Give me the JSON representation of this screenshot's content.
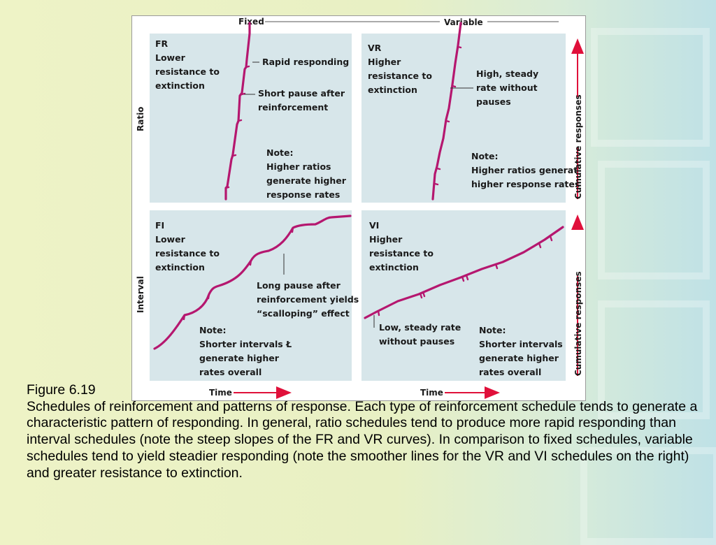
{
  "figure": {
    "headers": {
      "fixed": "Fixed",
      "variable": "Variable"
    },
    "row_labels": {
      "ratio": "Ratio",
      "interval": "Interval"
    },
    "axis": {
      "cumulative_top": "Cumulative responses",
      "cumulative_bottom": "Cumulative responses",
      "time_left": "Time",
      "time_right": "Time"
    },
    "panels": {
      "fr": {
        "label": [
          "FR",
          "Lower",
          "resistance to",
          "extinction"
        ],
        "callouts": {
          "rapid": [
            "Rapid responding"
          ],
          "pause": [
            "Short pause after",
            "reinforcement"
          ]
        },
        "note": [
          "Note:",
          "Higher ratios",
          "generate higher",
          "response rates"
        ]
      },
      "vr": {
        "label": [
          "VR",
          "Higher",
          "resistance to",
          "extinction"
        ],
        "callouts": {
          "steady": [
            "High, steady",
            "rate without",
            "pauses"
          ]
        },
        "note": [
          "Note:",
          "Higher ratios generat",
          "higher response rates"
        ]
      },
      "fi": {
        "label": [
          "FI",
          "Lower",
          "resistance to",
          "extinction"
        ],
        "callouts": {
          "scallop": [
            "Long pause after",
            "reinforcement yields",
            "“scalloping” effect"
          ]
        },
        "note": [
          "Note:",
          "Shorter intervals Ł",
          "generate higher",
          "rates overall"
        ]
      },
      "vi": {
        "label": [
          "VI",
          "Higher",
          "resistance to",
          "extinction"
        ],
        "callouts": {
          "low": [
            "Low, steady rate",
            "without pauses"
          ]
        },
        "note": [
          "Note:",
          "Shorter intervals",
          "generate higher",
          "rates overall"
        ]
      }
    },
    "colors": {
      "curve": "#b5176f",
      "arrow": "#e0103a",
      "panel_bg": "#d7e6ea"
    }
  },
  "caption": {
    "title": "Figure 6.19",
    "body": "Schedules of reinforcement and patterns of response. Each type of reinforcement schedule tends to generate a characteristic pattern of responding. In general, ratio schedules tend to produce more rapid responding than interval schedules (note the steep slopes of the FR and VR curves). In comparison to fixed schedules, variable schedules tend to yield steadier responding (note the smoother lines for the VR and VI schedules on the right) and greater resistance to extinction."
  }
}
